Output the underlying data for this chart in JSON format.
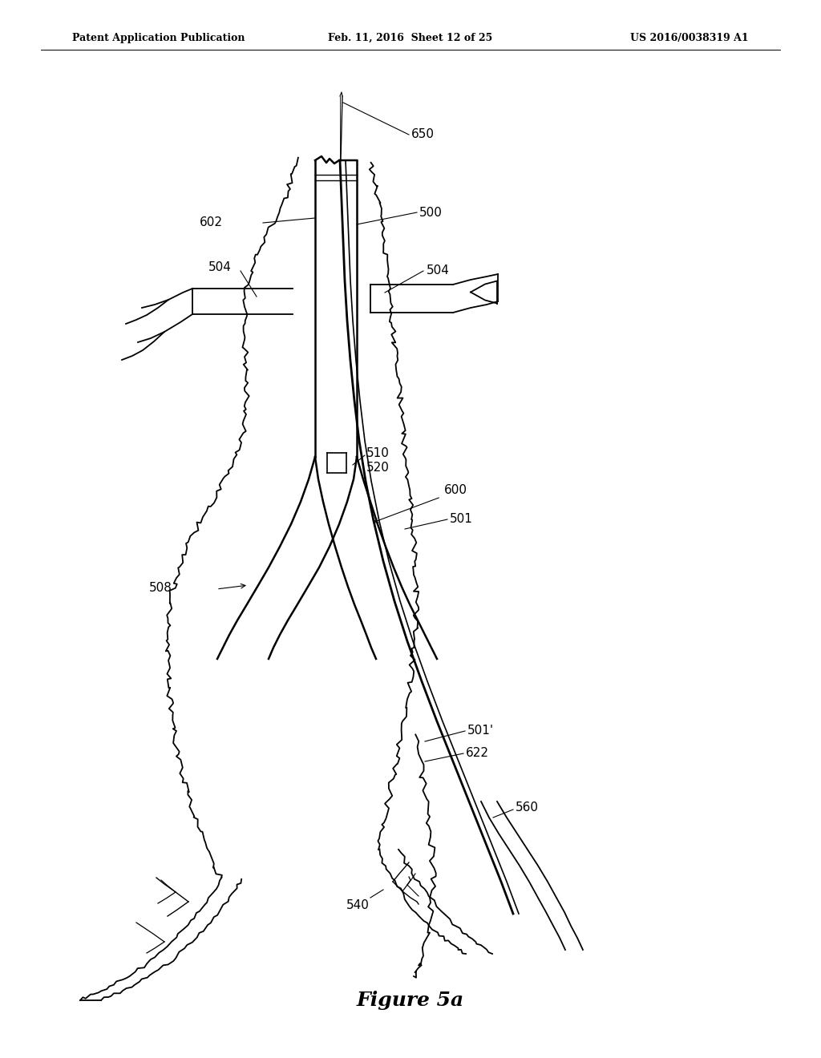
{
  "background": "#ffffff",
  "lc": "#000000",
  "header_left": "Patent Application Publication",
  "header_center": "Feb. 11, 2016  Sheet 12 of 25",
  "header_right": "US 2016/0038319 A1",
  "figure_label": "Figure 5a",
  "lw_vessel": 1.3,
  "lw_graft": 1.8,
  "lw_cath": 1.5,
  "lw_label": 0.8,
  "noise_aorta": 0.003,
  "noise_renal": 0.002,
  "noise_iliac": 0.002
}
